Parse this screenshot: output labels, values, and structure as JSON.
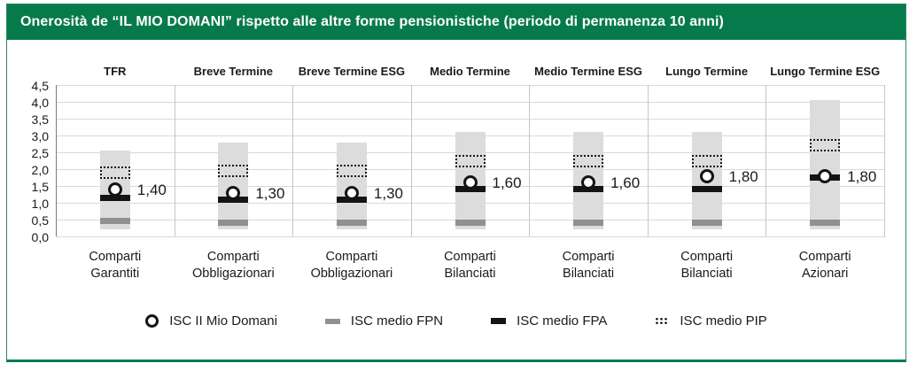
{
  "colors": {
    "header_green": "#077a4c",
    "panel_border": "#2c8a5c",
    "bar_gray": "#dcdcdc",
    "fpn_gray": "#909090",
    "fpa_black": "#141414",
    "grid": "#d9d9d9",
    "separator": "#c6c6c6",
    "axis": "#7a7a7a",
    "text": "#1a1a1a"
  },
  "chart_data": {
    "type": "range-bar-with-markers",
    "title": "Onerosità de “IL MIO DOMANI” rispetto alle altre forme pensionistiche (periodo di permanenza 10 anni)",
    "xlabel": "",
    "ylabel": "",
    "grid": true,
    "legend_position": "bottom",
    "y_axis": {
      "min": 0,
      "max": 4.5,
      "step": 0.5,
      "tick_labels": [
        "0,0",
        "0,5",
        "1,0",
        "1,5",
        "2,0",
        "2,5",
        "3,0",
        "3,5",
        "4,0",
        "4,5"
      ]
    },
    "series_legend": [
      {
        "id": "isc",
        "label": "ISC II Mio Domani",
        "marker": "open-circle"
      },
      {
        "id": "fpn",
        "label": "ISC medio FPN",
        "marker": "gray-dash"
      },
      {
        "id": "fpa",
        "label": "ISC medio FPA",
        "marker": "black-dash"
      },
      {
        "id": "pip",
        "label": "ISC medio PIP",
        "marker": "dotted-rect"
      }
    ],
    "groups": [
      {
        "header": "TFR",
        "category_line1": "Comparti",
        "category_line2": "Garantiti",
        "range": [
          0.2,
          2.55
        ],
        "pip": 1.9,
        "isc": 1.4,
        "isc_label": "1,40",
        "fpa": 1.15,
        "fpn": 0.45
      },
      {
        "header": "Breve Termine",
        "category_line1": "Comparti",
        "category_line2": "Obbligazionari",
        "range": [
          0.2,
          2.8
        ],
        "pip": 1.95,
        "isc": 1.3,
        "isc_label": "1,30",
        "fpa": 1.1,
        "fpn": 0.4
      },
      {
        "header": "Breve Termine ESG",
        "category_line1": "Comparti",
        "category_line2": "Obbligazionari",
        "range": [
          0.2,
          2.8
        ],
        "pip": 1.95,
        "isc": 1.3,
        "isc_label": "1,30",
        "fpa": 1.1,
        "fpn": 0.4
      },
      {
        "header": "Medio Termine",
        "category_line1": "Comparti",
        "category_line2": "Bilanciati",
        "range": [
          0.2,
          3.1
        ],
        "pip": 2.25,
        "isc": 1.6,
        "isc_label": "1,60",
        "fpa": 1.4,
        "fpn": 0.4
      },
      {
        "header": "Medio Termine ESG",
        "category_line1": "Comparti",
        "category_line2": "Bilanciati",
        "range": [
          0.2,
          3.1
        ],
        "pip": 2.25,
        "isc": 1.6,
        "isc_label": "1,60",
        "fpa": 1.4,
        "fpn": 0.4
      },
      {
        "header": "Lungo Termine",
        "category_line1": "Comparti",
        "category_line2": "Bilanciati",
        "range": [
          0.2,
          3.1
        ],
        "pip": 2.25,
        "isc": 1.8,
        "isc_label": "1,80",
        "fpa": 1.4,
        "fpn": 0.4
      },
      {
        "header": "Lungo Termine ESG",
        "category_line1": "Comparti",
        "category_line2": "Azionari",
        "range": [
          0.2,
          4.05
        ],
        "pip": 2.7,
        "isc": 1.8,
        "isc_label": "1,80",
        "fpa": 1.75,
        "fpn": 0.4
      }
    ]
  }
}
